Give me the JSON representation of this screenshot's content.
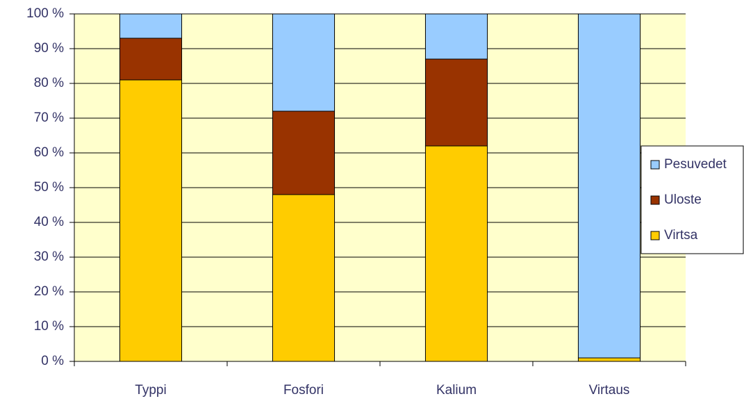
{
  "chart_data": {
    "type": "stacked_bar_100",
    "categories": [
      "Typpi",
      "Fosfori",
      "Kalium",
      "Virtaus"
    ],
    "series": [
      {
        "name": "Virtsa",
        "color": "#ffcc00",
        "values": [
          81,
          48,
          62,
          1
        ]
      },
      {
        "name": "Uloste",
        "color": "#993300",
        "values": [
          12,
          24,
          25,
          0
        ]
      },
      {
        "name": "Pesuvedet",
        "color": "#99ccff",
        "values": [
          7,
          28,
          13,
          99
        ]
      }
    ],
    "ylim": [
      0,
      100
    ],
    "yticks": [
      {
        "value": 0,
        "label": "0 %"
      },
      {
        "value": 10,
        "label": "10 %"
      },
      {
        "value": 20,
        "label": "20 %"
      },
      {
        "value": 30,
        "label": "30 %"
      },
      {
        "value": 40,
        "label": "40 %"
      },
      {
        "value": 50,
        "label": "50 %"
      },
      {
        "value": 60,
        "label": "60 %"
      },
      {
        "value": 70,
        "label": "70 %"
      },
      {
        "value": 80,
        "label": "80 %"
      },
      {
        "value": 90,
        "label": "90 %"
      },
      {
        "value": 100,
        "label": "100 %"
      }
    ],
    "grid": true,
    "legend": "right"
  }
}
